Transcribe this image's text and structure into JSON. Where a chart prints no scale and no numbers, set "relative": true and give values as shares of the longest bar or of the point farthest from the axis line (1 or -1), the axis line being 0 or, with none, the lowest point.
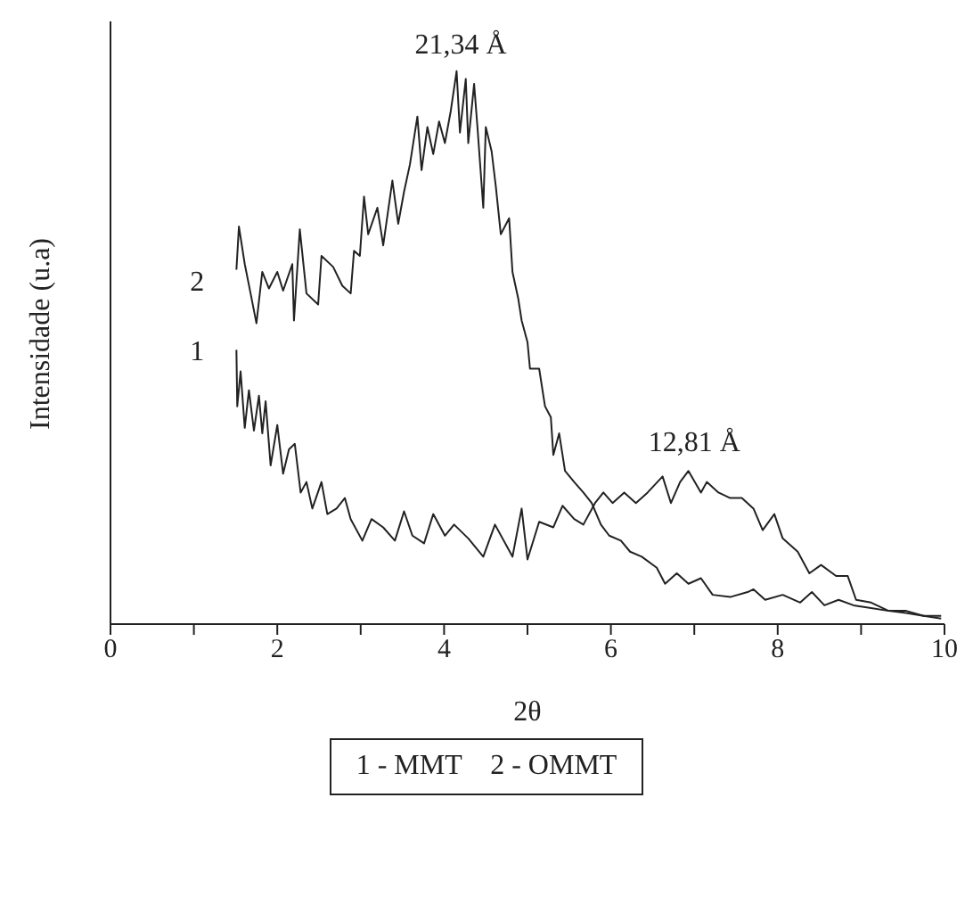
{
  "chart_data": {
    "type": "line",
    "relative": true,
    "xlabel": "2θ",
    "ylabel": "Intensidade (u.a)",
    "xlim": [
      0,
      10
    ],
    "xticks": [
      0,
      {
        "value": 1,
        "label": null
      },
      2,
      {
        "value": 3,
        "label": null
      },
      4,
      {
        "value": 5,
        "label": null
      },
      6,
      {
        "value": 7,
        "label": null
      },
      8,
      {
        "value": 9,
        "label": null
      },
      10
    ],
    "marker": "none",
    "line_style": "solid",
    "annotations": [
      {
        "text": "21,34 Å",
        "x": 4.2,
        "y": 1.0
      },
      {
        "text": "12,81 Å",
        "x": 7.0,
        "y": 0.28
      },
      "1 - MMT    2 - OMMT"
    ],
    "series": [
      {
        "name": "1",
        "color": "#222222",
        "x": [
          1.51,
          1.52,
          1.56,
          1.61,
          1.66,
          1.72,
          1.78,
          1.82,
          1.86,
          1.92,
          2.0,
          2.07,
          2.14,
          2.21,
          2.28,
          2.35,
          2.42,
          2.53,
          2.6,
          2.71,
          2.81,
          2.88,
          3.02,
          3.13,
          3.27,
          3.41,
          3.52,
          3.62,
          3.76,
          3.87,
          4.01,
          4.12,
          4.29,
          4.47,
          4.61,
          4.82,
          4.93,
          5.0,
          5.14,
          5.31,
          5.42,
          5.56,
          5.67,
          5.81,
          5.91,
          6.02,
          6.16,
          6.3,
          6.44,
          6.62,
          6.72,
          6.83,
          6.93,
          7.08,
          7.15,
          7.29,
          7.43,
          7.57,
          7.71,
          7.82,
          7.96,
          8.06,
          8.24,
          8.38,
          8.52,
          8.7,
          8.84,
          8.94,
          9.12,
          9.33,
          9.54,
          9.75,
          9.96
        ],
        "values": [
          0.496,
          0.394,
          0.457,
          0.355,
          0.423,
          0.35,
          0.413,
          0.345,
          0.403,
          0.287,
          0.36,
          0.272,
          0.316,
          0.326,
          0.238,
          0.257,
          0.209,
          0.257,
          0.199,
          0.209,
          0.228,
          0.19,
          0.151,
          0.19,
          0.175,
          0.151,
          0.204,
          0.16,
          0.146,
          0.199,
          0.16,
          0.18,
          0.155,
          0.122,
          0.18,
          0.122,
          0.209,
          0.117,
          0.185,
          0.175,
          0.214,
          0.19,
          0.18,
          0.219,
          0.238,
          0.219,
          0.238,
          0.219,
          0.238,
          0.267,
          0.219,
          0.257,
          0.277,
          0.238,
          0.257,
          0.238,
          0.228,
          0.228,
          0.209,
          0.17,
          0.199,
          0.155,
          0.131,
          0.092,
          0.107,
          0.087,
          0.087,
          0.044,
          0.039,
          0.024,
          0.024,
          0.015,
          0.015
        ]
      },
      {
        "name": "2",
        "color": "#222222",
        "x": [
          1.51,
          1.54,
          1.61,
          1.68,
          1.75,
          1.82,
          1.9,
          2.0,
          2.07,
          2.18,
          2.2,
          2.27,
          2.35,
          2.49,
          2.53,
          2.67,
          2.78,
          2.88,
          2.92,
          2.99,
          3.04,
          3.09,
          3.2,
          3.27,
          3.38,
          3.45,
          3.52,
          3.59,
          3.68,
          3.73,
          3.8,
          3.87,
          3.94,
          4.01,
          4.08,
          4.15,
          4.19,
          4.26,
          4.29,
          4.36,
          4.4,
          4.47,
          4.5,
          4.57,
          4.62,
          4.68,
          4.78,
          4.82,
          4.89,
          4.93,
          5.0,
          5.03,
          5.14,
          5.21,
          5.28,
          5.31,
          5.38,
          5.45,
          5.56,
          5.67,
          5.77,
          5.88,
          5.98,
          6.12,
          6.23,
          6.37,
          6.55,
          6.65,
          6.79,
          6.93,
          7.08,
          7.22,
          7.43,
          7.64,
          7.71,
          7.85,
          8.06,
          8.27,
          8.41,
          8.56,
          8.73,
          8.91,
          9.12,
          9.33,
          9.54,
          9.75,
          9.96
        ],
        "values": [
          0.641,
          0.719,
          0.651,
          0.598,
          0.544,
          0.637,
          0.607,
          0.637,
          0.603,
          0.651,
          0.549,
          0.714,
          0.598,
          0.578,
          0.666,
          0.646,
          0.612,
          0.598,
          0.675,
          0.666,
          0.773,
          0.705,
          0.753,
          0.685,
          0.802,
          0.724,
          0.782,
          0.831,
          0.918,
          0.821,
          0.899,
          0.85,
          0.909,
          0.87,
          0.928,
          1.0,
          0.889,
          0.986,
          0.87,
          0.977,
          0.899,
          0.753,
          0.899,
          0.855,
          0.792,
          0.705,
          0.734,
          0.637,
          0.588,
          0.549,
          0.51,
          0.462,
          0.462,
          0.394,
          0.374,
          0.306,
          0.345,
          0.277,
          0.257,
          0.238,
          0.219,
          0.18,
          0.16,
          0.151,
          0.131,
          0.122,
          0.102,
          0.073,
          0.092,
          0.073,
          0.083,
          0.053,
          0.049,
          0.058,
          0.063,
          0.044,
          0.053,
          0.039,
          0.058,
          0.034,
          0.044,
          0.034,
          0.029,
          0.024,
          0.02,
          0.015,
          0.01
        ]
      }
    ]
  }
}
